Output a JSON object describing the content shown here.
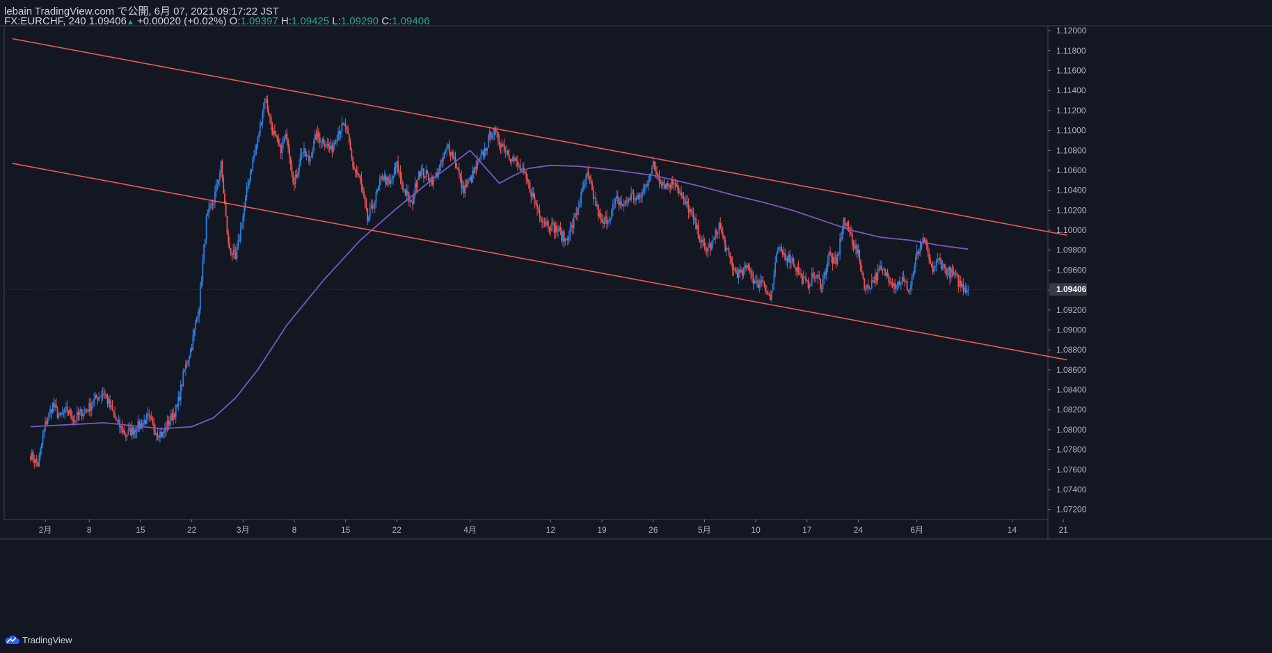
{
  "header": {
    "publisher": "lebain TradingView.com で公開, 6月 07, 2021 09:17:22 JST",
    "symbol": "FX:EURCHF, 240",
    "last": "1.09406",
    "change": "+0.00020 (+0.02%)",
    "o_label": "O:",
    "o_value": "1.09397",
    "h_label": "H:",
    "h_value": "1.09425",
    "l_label": "L:",
    "l_value": "1.09290",
    "c_label": "C:",
    "c_value": "1.09406"
  },
  "footer": {
    "brand": "TradingView"
  },
  "colors": {
    "background": "#131722",
    "bull": "#2e7fe0",
    "bear": "#ef5350",
    "channel": "#f05a50",
    "ma": "#7e57c2",
    "axis_text": "#b2b5be"
  },
  "chart_data": {
    "type": "candlestick",
    "instrument": "FX:EURCHF",
    "timeframe": "240",
    "ylim": [
      1.071,
      1.1205
    ],
    "y_ticks": [
      "1.12000",
      "1.11800",
      "1.11600",
      "1.11400",
      "1.11200",
      "1.11000",
      "1.10800",
      "1.10600",
      "1.10400",
      "1.10200",
      "1.10000",
      "1.09800",
      "1.09600",
      "1.09400",
      "1.09200",
      "1.09000",
      "1.08800",
      "1.08600",
      "1.08400",
      "1.08200",
      "1.08000",
      "1.07800",
      "1.07600",
      "1.07400",
      "1.07200"
    ],
    "x_ticks": [
      {
        "label": "2月",
        "x": 2
      },
      {
        "label": "8",
        "x": 8
      },
      {
        "label": "15",
        "x": 15
      },
      {
        "label": "22",
        "x": 22
      },
      {
        "label": "3月",
        "x": 29
      },
      {
        "label": "8",
        "x": 36
      },
      {
        "label": "15",
        "x": 43
      },
      {
        "label": "22",
        "x": 50
      },
      {
        "label": "4月",
        "x": 60
      },
      {
        "label": "12",
        "x": 71
      },
      {
        "label": "19",
        "x": 78
      },
      {
        "label": "26",
        "x": 85
      },
      {
        "label": "5月",
        "x": 92
      },
      {
        "label": "10",
        "x": 99
      },
      {
        "label": "17",
        "x": 106
      },
      {
        "label": "24",
        "x": 113
      },
      {
        "label": "6月",
        "x": 121
      },
      {
        "label": "14",
        "x": 134
      },
      {
        "label": "21",
        "x": 141
      }
    ],
    "x_unit": "trading day index (0 = Jan 29, 2021)",
    "price_label": "1.09406",
    "close_path": [
      [
        0,
        1.0775
      ],
      [
        1,
        1.0765
      ],
      [
        2,
        1.0805
      ],
      [
        3,
        1.0825
      ],
      [
        4,
        1.0812
      ],
      [
        5,
        1.082
      ],
      [
        6,
        1.081
      ],
      [
        7,
        1.0818
      ],
      [
        8,
        1.0822
      ],
      [
        9,
        1.0832
      ],
      [
        10,
        1.0838
      ],
      [
        11,
        1.082
      ],
      [
        12,
        1.0805
      ],
      [
        13,
        1.0795
      ],
      [
        14,
        1.08
      ],
      [
        15,
        1.0805
      ],
      [
        16,
        1.0812
      ],
      [
        17,
        1.08
      ],
      [
        18,
        1.0795
      ],
      [
        19,
        1.081
      ],
      [
        20,
        1.0822
      ],
      [
        21,
        1.086
      ],
      [
        22,
        1.0885
      ],
      [
        23,
        1.0925
      ],
      [
        24,
        1.101
      ],
      [
        25,
        1.103
      ],
      [
        26,
        1.1065
      ],
      [
        27,
        1.0985
      ],
      [
        28,
        1.097
      ],
      [
        29,
        1.1015
      ],
      [
        30,
        1.106
      ],
      [
        31,
        1.109
      ],
      [
        32,
        1.1135
      ],
      [
        33,
        1.11
      ],
      [
        34,
        1.108
      ],
      [
        35,
        1.1095
      ],
      [
        36,
        1.1045
      ],
      [
        37,
        1.108
      ],
      [
        38,
        1.107
      ],
      [
        39,
        1.1095
      ],
      [
        40,
        1.109
      ],
      [
        41,
        1.108
      ],
      [
        42,
        1.11
      ],
      [
        43,
        1.1105
      ],
      [
        44,
        1.1065
      ],
      [
        45,
        1.105
      ],
      [
        46,
        1.101
      ],
      [
        47,
        1.103
      ],
      [
        48,
        1.1055
      ],
      [
        49,
        1.1045
      ],
      [
        50,
        1.1065
      ],
      [
        51,
        1.104
      ],
      [
        52,
        1.1025
      ],
      [
        53,
        1.106
      ],
      [
        54,
        1.1055
      ],
      [
        55,
        1.105
      ],
      [
        56,
        1.1065
      ],
      [
        57,
        1.1085
      ],
      [
        58,
        1.107
      ],
      [
        59,
        1.104
      ],
      [
        60,
        1.105
      ],
      [
        61,
        1.1065
      ],
      [
        62,
        1.108
      ],
      [
        63,
        1.11
      ],
      [
        64,
        1.109
      ],
      [
        65,
        1.108
      ],
      [
        66,
        1.107
      ],
      [
        67,
        1.106
      ],
      [
        68,
        1.1045
      ],
      [
        69,
        1.1025
      ],
      [
        70,
        1.101
      ],
      [
        71,
        1.1005
      ],
      [
        72,
        1.1
      ],
      [
        73,
        1.099
      ],
      [
        74,
        1.1005
      ],
      [
        75,
        1.103
      ],
      [
        76,
        1.1055
      ],
      [
        77,
        1.103
      ],
      [
        78,
        1.1005
      ],
      [
        79,
        1.1015
      ],
      [
        80,
        1.103
      ],
      [
        81,
        1.1025
      ],
      [
        82,
        1.1035
      ],
      [
        83,
        1.103
      ],
      [
        84,
        1.1045
      ],
      [
        85,
        1.1065
      ],
      [
        86,
        1.105
      ],
      [
        87,
        1.1045
      ],
      [
        88,
        1.105
      ],
      [
        89,
        1.103
      ],
      [
        90,
        1.102
      ],
      [
        91,
        1.1
      ],
      [
        92,
        1.098
      ],
      [
        93,
        1.0985
      ],
      [
        94,
        1.1005
      ],
      [
        95,
        1.098
      ],
      [
        96,
        1.096
      ],
      [
        97,
        1.0955
      ],
      [
        98,
        1.0965
      ],
      [
        99,
        1.0945
      ],
      [
        100,
        1.095
      ],
      [
        101,
        1.093
      ],
      [
        102,
        1.098
      ],
      [
        103,
        1.0975
      ],
      [
        104,
        1.097
      ],
      [
        105,
        1.0955
      ],
      [
        106,
        1.0945
      ],
      [
        107,
        1.0955
      ],
      [
        108,
        1.0945
      ],
      [
        109,
        1.0975
      ],
      [
        110,
        1.0965
      ],
      [
        111,
        1.101
      ],
      [
        112,
        1.0995
      ],
      [
        113,
        1.0975
      ],
      [
        114,
        1.094
      ],
      [
        115,
        1.095
      ],
      [
        116,
        1.096
      ],
      [
        117,
        1.0955
      ],
      [
        118,
        1.0945
      ],
      [
        119,
        1.095
      ],
      [
        120,
        1.094
      ],
      [
        121,
        1.0975
      ],
      [
        122,
        1.099
      ],
      [
        123,
        1.096
      ],
      [
        124,
        1.097
      ],
      [
        125,
        1.096
      ],
      [
        126,
        1.0955
      ],
      [
        127,
        1.0945
      ],
      [
        128,
        1.09406
      ]
    ],
    "ma_path": [
      [
        0,
        1.0803
      ],
      [
        10,
        1.0807
      ],
      [
        18,
        1.0801
      ],
      [
        22,
        1.0803
      ],
      [
        25,
        1.0812
      ],
      [
        28,
        1.0832
      ],
      [
        31,
        1.086
      ],
      [
        35,
        1.0905
      ],
      [
        40,
        1.095
      ],
      [
        45,
        1.099
      ],
      [
        50,
        1.1022
      ],
      [
        55,
        1.1052
      ],
      [
        60,
        1.108
      ],
      [
        64,
        1.1047
      ],
      [
        66,
        1.1055
      ],
      [
        68,
        1.1062
      ],
      [
        71,
        1.1065
      ],
      [
        75,
        1.1064
      ],
      [
        80,
        1.106
      ],
      [
        85,
        1.1055
      ],
      [
        88,
        1.105
      ],
      [
        92,
        1.1043
      ],
      [
        96,
        1.1035
      ],
      [
        100,
        1.1028
      ],
      [
        104,
        1.102
      ],
      [
        108,
        1.101
      ],
      [
        112,
        1.1
      ],
      [
        116,
        1.0993
      ],
      [
        120,
        1.099
      ],
      [
        124,
        1.0985
      ],
      [
        128,
        1.0981
      ]
    ],
    "channel_upper": [
      [
        -2.5,
        1.1192
      ],
      [
        141.5,
        1.0995
      ]
    ],
    "channel_lower": [
      [
        -2.5,
        1.1067
      ],
      [
        141.5,
        1.087
      ]
    ]
  }
}
